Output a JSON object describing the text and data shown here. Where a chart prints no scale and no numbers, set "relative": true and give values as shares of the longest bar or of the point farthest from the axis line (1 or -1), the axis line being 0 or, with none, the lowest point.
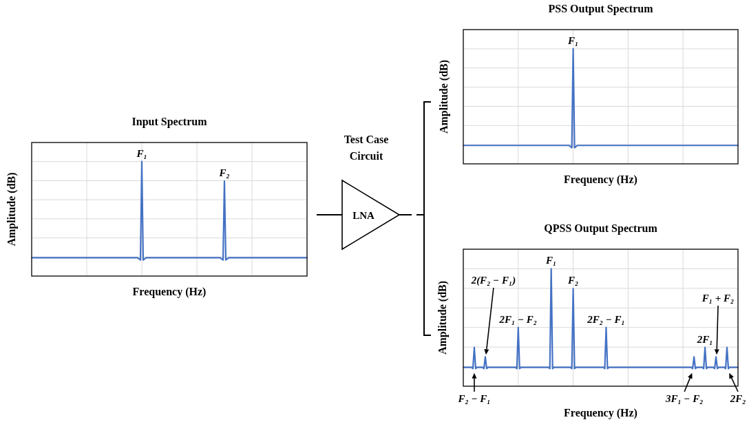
{
  "chart_data": [
    {
      "type": "line",
      "title": "Input Spectrum",
      "xlabel": "Frequency (Hz)",
      "ylabel": "Amplitude (dB)",
      "relative": true,
      "grid": true,
      "categories": [
        null,
        null,
        null,
        null,
        null,
        null,
        null,
        null,
        null,
        null,
        null,
        null,
        null,
        null,
        null,
        null,
        null,
        null,
        null,
        null,
        null,
        null,
        null,
        null,
        null,
        null,
        null,
        null,
        null,
        null,
        null,
        null,
        null,
        null,
        null,
        null,
        null,
        null,
        null,
        null,
        null,
        null,
        null,
        null,
        null,
        null,
        null,
        null,
        null,
        null,
        null,
        null,
        null,
        null,
        null,
        null,
        null,
        null,
        null,
        null,
        null,
        null,
        null,
        null,
        null,
        null,
        null,
        null,
        null,
        null,
        null,
        null,
        null,
        null,
        null,
        null,
        null,
        null,
        null,
        null,
        null,
        null,
        null,
        null,
        null,
        null,
        null,
        null,
        null,
        null,
        null,
        null,
        null,
        null,
        null,
        null,
        null,
        null,
        null,
        null,
        null,
        null,
        null,
        null,
        null,
        null,
        null,
        null,
        null,
        null,
        null,
        null,
        null,
        null,
        null,
        null,
        null,
        null,
        null,
        null,
        null,
        null,
        null,
        null,
        null,
        null,
        null,
        null,
        null,
        null,
        null,
        null,
        null,
        null,
        null,
        null,
        null,
        null,
        null,
        null,
        null,
        null,
        null,
        null,
        null,
        null,
        null,
        null,
        null,
        null,
        null,
        null,
        null,
        null,
        null,
        null,
        null,
        null,
        null,
        null,
        null,
        null,
        null,
        null,
        null,
        null,
        null,
        null,
        null,
        null,
        null,
        null,
        null,
        null,
        null,
        null,
        null,
        null,
        null,
        null,
        null,
        null,
        null,
        null,
        null,
        null,
        null,
        null,
        null,
        null,
        null,
        null,
        null,
        null,
        null,
        null,
        null,
        null,
        null,
        null,
        null
      ],
      "series": [
        {
          "color": "#4472c4",
          "values": [
            0.16,
            0.16,
            0.16,
            0.16,
            0.16,
            0.16,
            0.16,
            0.16,
            0.16,
            0.16,
            0.16,
            0.16,
            0.16,
            0.16,
            0.16,
            0.16,
            0.16,
            0.16,
            0.16,
            0.16,
            0.16,
            0.16,
            0.16,
            0.16,
            0.16,
            0.16,
            0.16,
            0.16,
            0.16,
            0.16,
            0.16,
            0.16,
            0.16,
            0.16,
            0.16,
            0.16,
            0.16,
            0.16,
            0.16,
            0.16,
            0.16,
            0.16,
            0.16,
            0.16,
            0.16,
            0.16,
            0.16,
            0.16,
            0.16,
            0.16,
            0.16,
            0.16,
            0.16,
            0.16,
            0.16,
            0.16,
            0.16,
            0.16,
            0.16,
            0.16,
            0.16,
            0.16,
            0.16,
            0.16,
            0.16,
            0.16,
            0.16,
            0.16,
            0.16,
            0.16,
            0.16,
            0.16,
            0.16,
            0.16,
            0.16,
            0.16,
            0.16,
            0.16,
            0.15,
            0.14,
            1,
            0.14,
            0.15,
            0.16,
            0.16,
            0.16,
            0.16,
            0.16,
            0.16,
            0.16,
            0.16,
            0.16,
            0.16,
            0.16,
            0.16,
            0.16,
            0.16,
            0.16,
            0.16,
            0.16,
            0.16,
            0.16,
            0.16,
            0.16,
            0.16,
            0.16,
            0.16,
            0.16,
            0.16,
            0.16,
            0.16,
            0.16,
            0.16,
            0.16,
            0.16,
            0.16,
            0.16,
            0.16,
            0.16,
            0.16,
            0.16,
            0.16,
            0.16,
            0.16,
            0.16,
            0.16,
            0.16,
            0.16,
            0.16,
            0.16,
            0.16,
            0.16,
            0.16,
            0.16,
            0.16,
            0.16,
            0.16,
            0.16,
            0.15,
            0.14,
            0.83,
            0.14,
            0.15,
            0.16,
            0.16,
            0.16,
            0.16,
            0.16,
            0.16,
            0.16,
            0.16,
            0.16,
            0.16,
            0.16,
            0.16,
            0.16,
            0.16,
            0.16,
            0.16,
            0.16,
            0.16,
            0.16,
            0.16,
            0.16,
            0.16,
            0.16,
            0.16,
            0.16,
            0.16,
            0.16,
            0.16,
            0.16,
            0.16,
            0.16,
            0.16,
            0.16,
            0.16,
            0.16,
            0.16,
            0.16,
            0.16,
            0.16,
            0.16,
            0.16,
            0.16,
            0.16,
            0.16,
            0.16,
            0.16,
            0.16,
            0.16,
            0.16,
            0.16,
            0.16,
            0.16,
            0.16,
            0.16,
            0.16,
            0.16,
            0.16,
            0.16
          ]
        }
      ],
      "annotations": [
        "F₁",
        "F₂"
      ]
    },
    {
      "type": "other",
      "title": "Test Case Circuit",
      "annotations": [
        "LNA"
      ]
    },
    {
      "type": "line",
      "title": "PSS Output Spectrum",
      "xlabel": "Frequency (Hz)",
      "ylabel": "Amplitude (dB)",
      "relative": true,
      "grid": true,
      "categories": [
        null,
        null,
        null,
        null,
        null,
        null,
        null,
        null,
        null,
        null,
        null,
        null,
        null,
        null,
        null,
        null,
        null,
        null,
        null,
        null,
        null,
        null,
        null,
        null,
        null,
        null,
        null,
        null,
        null,
        null,
        null,
        null,
        null,
        null,
        null,
        null,
        null,
        null,
        null,
        null,
        null,
        null,
        null,
        null,
        null,
        null,
        null,
        null,
        null,
        null,
        null,
        null,
        null,
        null,
        null,
        null,
        null,
        null,
        null,
        null,
        null,
        null,
        null,
        null,
        null,
        null,
        null,
        null,
        null,
        null,
        null,
        null,
        null,
        null,
        null,
        null,
        null,
        null,
        null,
        null,
        null,
        null,
        null,
        null,
        null,
        null,
        null,
        null,
        null,
        null,
        null,
        null,
        null,
        null,
        null,
        null,
        null,
        null,
        null,
        null,
        null,
        null,
        null,
        null,
        null,
        null,
        null,
        null,
        null,
        null,
        null,
        null,
        null,
        null,
        null,
        null,
        null,
        null,
        null,
        null,
        null,
        null,
        null,
        null,
        null,
        null,
        null,
        null,
        null,
        null,
        null,
        null,
        null,
        null,
        null,
        null,
        null,
        null,
        null,
        null,
        null,
        null,
        null,
        null,
        null,
        null,
        null,
        null,
        null,
        null,
        null,
        null,
        null,
        null,
        null,
        null,
        null,
        null,
        null,
        null,
        null,
        null,
        null,
        null,
        null,
        null,
        null,
        null,
        null,
        null,
        null,
        null,
        null,
        null,
        null,
        null,
        null,
        null,
        null,
        null,
        null,
        null,
        null,
        null,
        null,
        null,
        null,
        null,
        null,
        null,
        null,
        null,
        null,
        null,
        null,
        null,
        null,
        null,
        null,
        null,
        null
      ],
      "series": [
        {
          "color": "#4472c4",
          "values": [
            0.16,
            0.16,
            0.16,
            0.16,
            0.16,
            0.16,
            0.16,
            0.16,
            0.16,
            0.16,
            0.16,
            0.16,
            0.16,
            0.16,
            0.16,
            0.16,
            0.16,
            0.16,
            0.16,
            0.16,
            0.16,
            0.16,
            0.16,
            0.16,
            0.16,
            0.16,
            0.16,
            0.16,
            0.16,
            0.16,
            0.16,
            0.16,
            0.16,
            0.16,
            0.16,
            0.16,
            0.16,
            0.16,
            0.16,
            0.16,
            0.16,
            0.16,
            0.16,
            0.16,
            0.16,
            0.16,
            0.16,
            0.16,
            0.16,
            0.16,
            0.16,
            0.16,
            0.16,
            0.16,
            0.16,
            0.16,
            0.16,
            0.16,
            0.16,
            0.16,
            0.16,
            0.16,
            0.16,
            0.16,
            0.16,
            0.16,
            0.16,
            0.16,
            0.16,
            0.16,
            0.16,
            0.16,
            0.16,
            0.16,
            0.16,
            0.16,
            0.16,
            0.16,
            0.15,
            0.14,
            1,
            0.14,
            0.15,
            0.16,
            0.16,
            0.16,
            0.16,
            0.16,
            0.16,
            0.16,
            0.16,
            0.16,
            0.16,
            0.16,
            0.16,
            0.16,
            0.16,
            0.16,
            0.16,
            0.16,
            0.16,
            0.16,
            0.16,
            0.16,
            0.16,
            0.16,
            0.16,
            0.16,
            0.16,
            0.16,
            0.16,
            0.16,
            0.16,
            0.16,
            0.16,
            0.16,
            0.16,
            0.16,
            0.16,
            0.16,
            0.16,
            0.16,
            0.16,
            0.16,
            0.16,
            0.16,
            0.16,
            0.16,
            0.16,
            0.16,
            0.16,
            0.16,
            0.16,
            0.16,
            0.16,
            0.16,
            0.16,
            0.16,
            0.16,
            0.16,
            0.16,
            0.16,
            0.16,
            0.16,
            0.16,
            0.16,
            0.16,
            0.16,
            0.16,
            0.16,
            0.16,
            0.16,
            0.16,
            0.16,
            0.16,
            0.16,
            0.16,
            0.16,
            0.16,
            0.16,
            0.16,
            0.16,
            0.16,
            0.16,
            0.16,
            0.16,
            0.16,
            0.16,
            0.16,
            0.16,
            0.16,
            0.16,
            0.16,
            0.16,
            0.16,
            0.16,
            0.16,
            0.16,
            0.16,
            0.16,
            0.16,
            0.16,
            0.16,
            0.16,
            0.16,
            0.16,
            0.16,
            0.16,
            0.16,
            0.16,
            0.16,
            0.16,
            0.16,
            0.16,
            0.16,
            0.16,
            0.16,
            0.16,
            0.16,
            0.16,
            0.16
          ]
        }
      ],
      "annotations": [
        "F₁"
      ]
    },
    {
      "type": "line",
      "title": "QPSS Output Spectrum",
      "xlabel": "Frequency (Hz)",
      "ylabel": "Amplitude (dB)",
      "relative": true,
      "grid": true,
      "categories": [
        null,
        null,
        null,
        null,
        null,
        null,
        null,
        null,
        null,
        null,
        null,
        null,
        null,
        null,
        null,
        null,
        null,
        null,
        null,
        null,
        null,
        null,
        null,
        null,
        null,
        null,
        null,
        null,
        null,
        null,
        null,
        null,
        null,
        null,
        null,
        null,
        null,
        null,
        null,
        null,
        null,
        null,
        null,
        null,
        null,
        null,
        null,
        null,
        null,
        null,
        null,
        null,
        null,
        null,
        null,
        null,
        null,
        null,
        null,
        null,
        null,
        null,
        null,
        null,
        null,
        null,
        null,
        null,
        null,
        null,
        null,
        null,
        null,
        null,
        null,
        null,
        null,
        null,
        null,
        null,
        null,
        null,
        null,
        null,
        null,
        null,
        null,
        null,
        null,
        null,
        null,
        null,
        null,
        null,
        null,
        null,
        null,
        null,
        null,
        null,
        null,
        null,
        null,
        null,
        null,
        null,
        null,
        null,
        null,
        null,
        null,
        null,
        null,
        null,
        null,
        null,
        null,
        null,
        null,
        null,
        null,
        null,
        null,
        null,
        null,
        null,
        null,
        null,
        null,
        null,
        null,
        null,
        null,
        null,
        null,
        null,
        null,
        null,
        null,
        null,
        null,
        null,
        null,
        null,
        null,
        null,
        null,
        null,
        null,
        null,
        null,
        null,
        null,
        null,
        null,
        null,
        null,
        null,
        null,
        null,
        null,
        null,
        null,
        null,
        null,
        null,
        null,
        null,
        null,
        null,
        null,
        null,
        null,
        null,
        null,
        null,
        null,
        null,
        null,
        null,
        null,
        null,
        null,
        null,
        null,
        null,
        null,
        null,
        null,
        null,
        null,
        null,
        null,
        null,
        null,
        null,
        null,
        null,
        null,
        null,
        null
      ],
      "series": [
        {
          "color": "#4472c4",
          "values": [
            0.16,
            0.16,
            0.16,
            0.16,
            0.16,
            0.16,
            0.16,
            0.15,
            0.33,
            0.15,
            0.16,
            0.16,
            0.16,
            0.16,
            0.16,
            0.15,
            0.25,
            0.15,
            0.16,
            0.16,
            0.16,
            0.16,
            0.16,
            0.16,
            0.16,
            0.16,
            0.16,
            0.16,
            0.16,
            0.16,
            0.16,
            0.16,
            0.16,
            0.16,
            0.16,
            0.16,
            0.16,
            0.16,
            0.16,
            0.15,
            0.5,
            0.15,
            0.16,
            0.16,
            0.16,
            0.16,
            0.16,
            0.16,
            0.16,
            0.16,
            0.16,
            0.16,
            0.16,
            0.16,
            0.16,
            0.16,
            0.16,
            0.16,
            0.16,
            0.16,
            0.16,
            0.16,
            0.16,
            0.15,
            1,
            0.15,
            0.16,
            0.16,
            0.16,
            0.16,
            0.16,
            0.16,
            0.16,
            0.16,
            0.16,
            0.16,
            0.16,
            0.16,
            0.16,
            0.15,
            0.83,
            0.15,
            0.16,
            0.16,
            0.16,
            0.16,
            0.16,
            0.16,
            0.16,
            0.16,
            0.16,
            0.16,
            0.16,
            0.16,
            0.16,
            0.16,
            0.16,
            0.16,
            0.16,
            0.16,
            0.16,
            0.16,
            0.16,
            0.15,
            0.5,
            0.15,
            0.16,
            0.16,
            0.16,
            0.16,
            0.16,
            0.16,
            0.16,
            0.16,
            0.16,
            0.16,
            0.16,
            0.16,
            0.16,
            0.16,
            0.16,
            0.16,
            0.16,
            0.16,
            0.16,
            0.16,
            0.16,
            0.16,
            0.16,
            0.16,
            0.16,
            0.16,
            0.16,
            0.16,
            0.16,
            0.16,
            0.16,
            0.16,
            0.16,
            0.16,
            0.16,
            0.16,
            0.16,
            0.16,
            0.16,
            0.16,
            0.16,
            0.16,
            0.16,
            0.16,
            0.16,
            0.16,
            0.16,
            0.16,
            0.16,
            0.16,
            0.16,
            0.16,
            0.16,
            0.16,
            0.16,
            0.16,
            0.16,
            0.16,
            0.16,
            0.16,
            0.16,
            0.15,
            0.25,
            0.15,
            0.16,
            0.16,
            0.16,
            0.16,
            0.16,
            0.15,
            0.33,
            0.15,
            0.16,
            0.16,
            0.16,
            0.16,
            0.16,
            0.15,
            0.25,
            0.15,
            0.16,
            0.16,
            0.16,
            0.16,
            0.16,
            0.15,
            0.33,
            0.15,
            0.16,
            0.16,
            0.16,
            0.16,
            0.16,
            0.16,
            0.16
          ]
        }
      ],
      "annotations": [
        "F₂ − F₁",
        "2(F₂ − F₁)",
        "2F₁ − F₂",
        "F₁",
        "F₂",
        "2F₂ − F₁",
        "3F₁ − F₂",
        "2F₁",
        "F₁ + F₂",
        "2F₂"
      ]
    }
  ]
}
